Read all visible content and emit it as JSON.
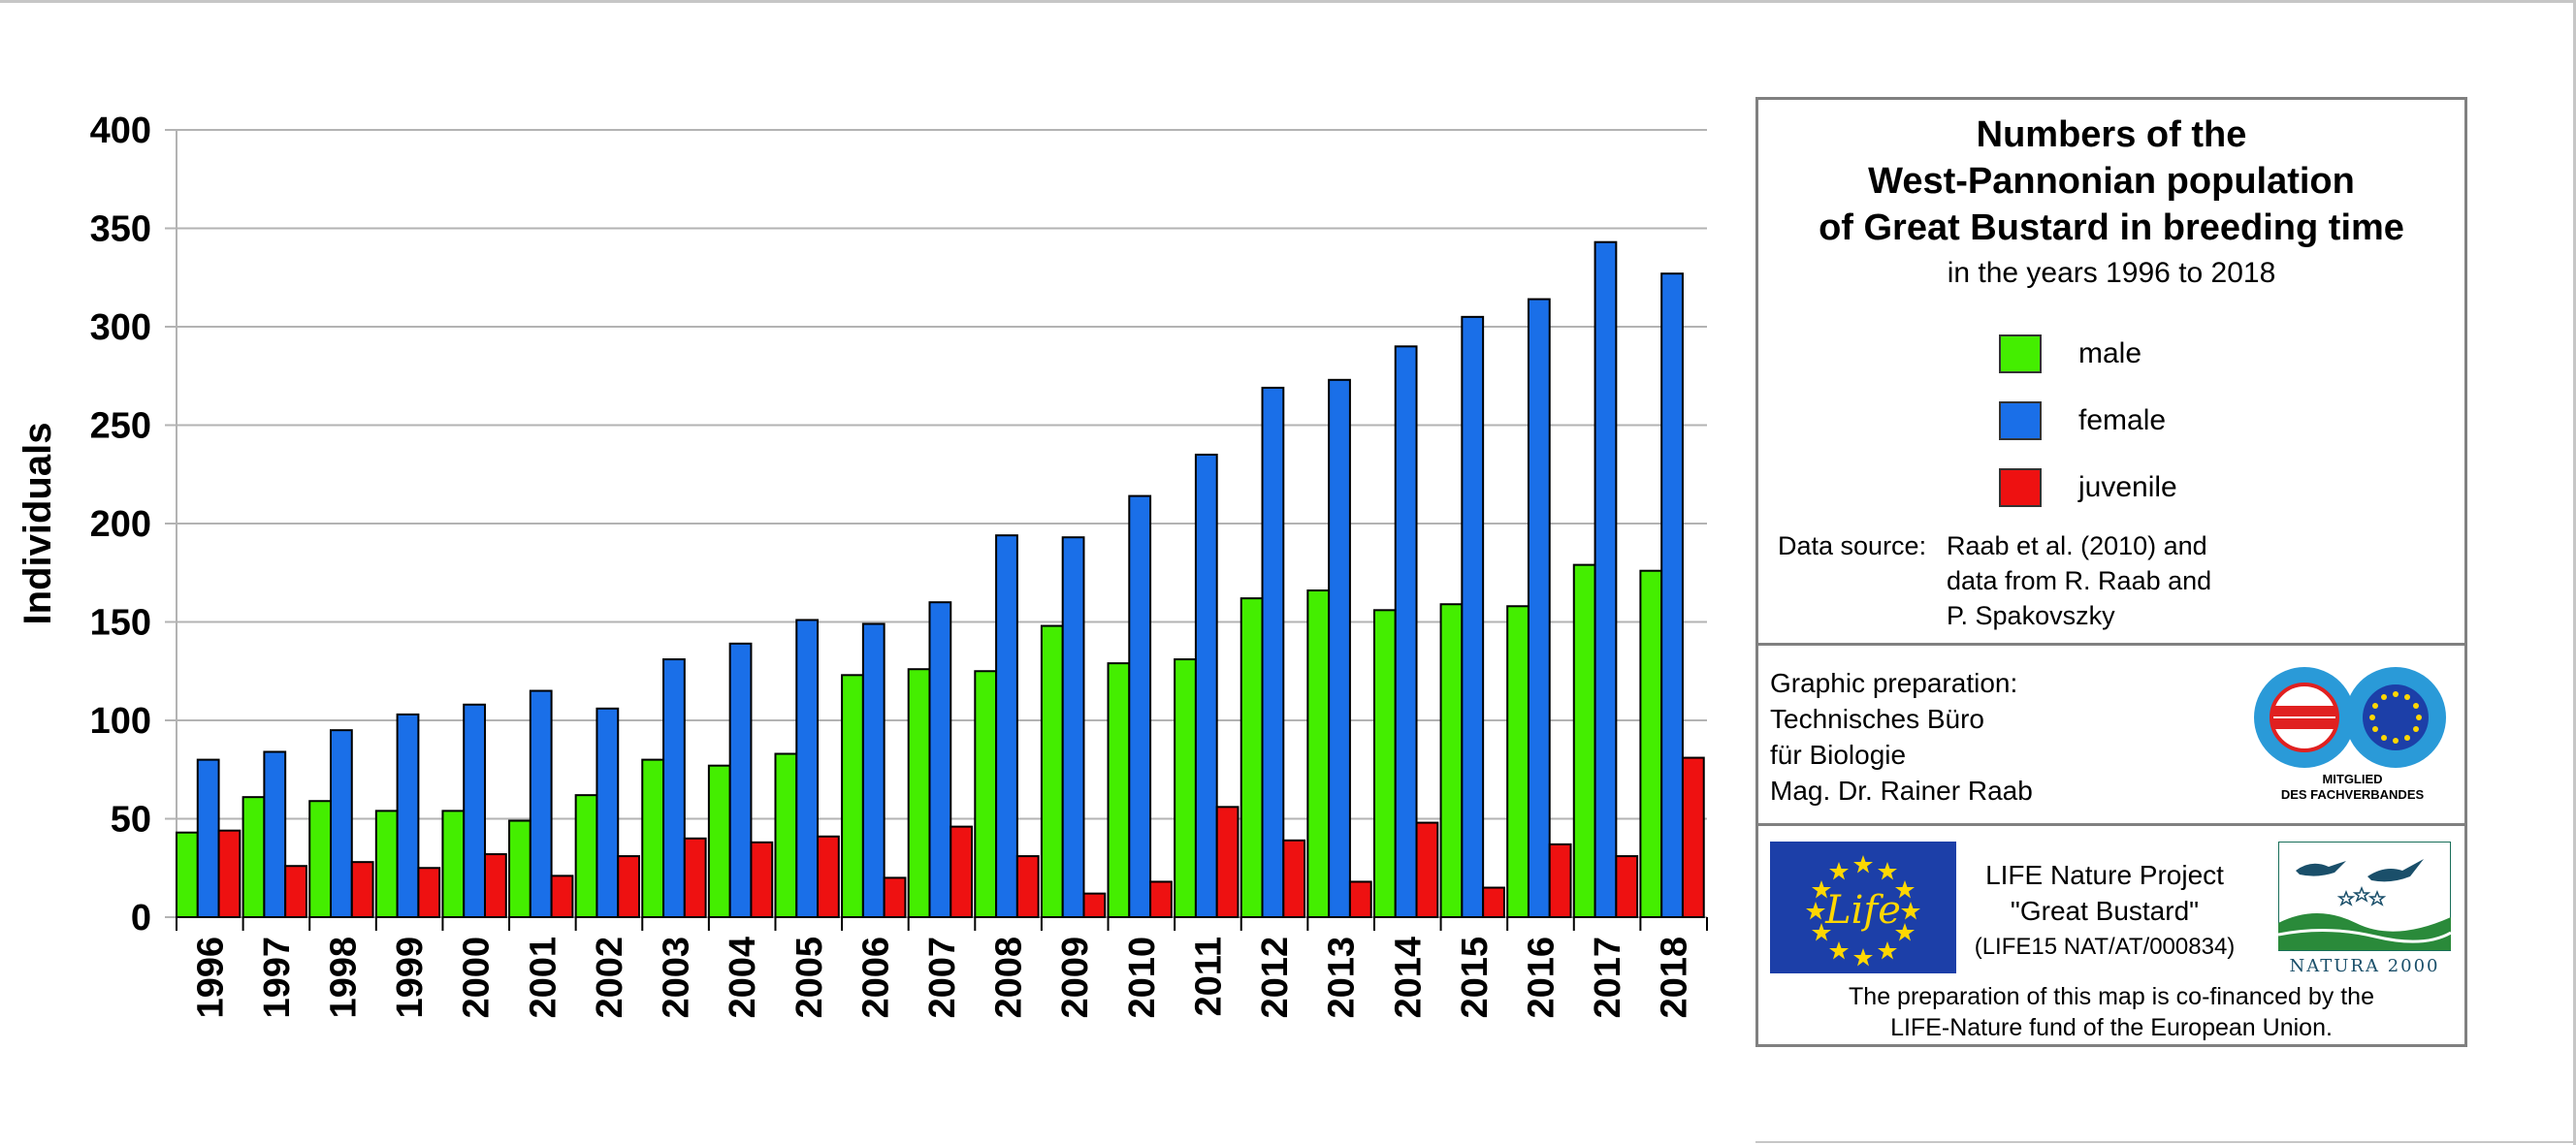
{
  "chart_data": {
    "type": "bar",
    "ylabel": "Individuals",
    "ylim": [
      0,
      400
    ],
    "yticks": [
      "0",
      "50",
      "100",
      "150",
      "200",
      "250",
      "300",
      "350",
      "400"
    ],
    "grid": true,
    "categories": [
      "1996",
      "1997",
      "1998",
      "1999",
      "2000",
      "2001",
      "2002",
      "2003",
      "2004",
      "2005",
      "2006",
      "2007",
      "2008",
      "2009",
      "2010",
      "2011",
      "2012",
      "2013",
      "2014",
      "2015",
      "2016",
      "2017",
      "2018"
    ],
    "series": [
      {
        "name": "male",
        "color": "#44ee00",
        "values": [
          43,
          61,
          59,
          54,
          54,
          49,
          62,
          80,
          77,
          83,
          123,
          126,
          125,
          148,
          129,
          131,
          162,
          166,
          156,
          159,
          158,
          179,
          176
        ]
      },
      {
        "name": "female",
        "color": "#1a6fe8",
        "values": [
          80,
          84,
          95,
          103,
          108,
          115,
          106,
          131,
          139,
          151,
          149,
          160,
          194,
          193,
          214,
          235,
          269,
          273,
          290,
          305,
          314,
          343,
          327
        ]
      },
      {
        "name": "juvenile",
        "color": "#ee1111",
        "values": [
          44,
          26,
          28,
          25,
          32,
          21,
          31,
          40,
          38,
          41,
          20,
          46,
          31,
          12,
          18,
          56,
          39,
          18,
          48,
          15,
          37,
          31,
          81
        ]
      }
    ]
  },
  "legend_panel": {
    "title_lines": [
      "Numbers of the",
      "West-Pannonian population",
      "of Great Bustard in breeding time"
    ],
    "subtitle": "in the years 1996 to 2018",
    "source_label": "Data source:",
    "source_text_lines": [
      "Raab et al. (2010) and",
      "data from R. Raab and",
      "P. Spakovszky"
    ]
  },
  "credit_panel": {
    "lines": [
      "Graphic preparation:",
      "Technisches Büro",
      "für Biologie",
      "Mag. Dr. Rainer Raab"
    ],
    "badge_caption_lines": [
      "MITGLIED",
      "DES FACHVERBANDES"
    ]
  },
  "life_panel": {
    "project_lines": [
      "LIFE Nature Project",
      "\"Great Bustard\""
    ],
    "project_code": "(LIFE15 NAT/AT/000834)",
    "cofinance_lines": [
      "The preparation of this map is co-financed by the",
      "LIFE-Nature fund of the European Union."
    ]
  },
  "icons": [
    "eu-life-logo",
    "technische-bueros-badge",
    "natura-2000-logo"
  ]
}
